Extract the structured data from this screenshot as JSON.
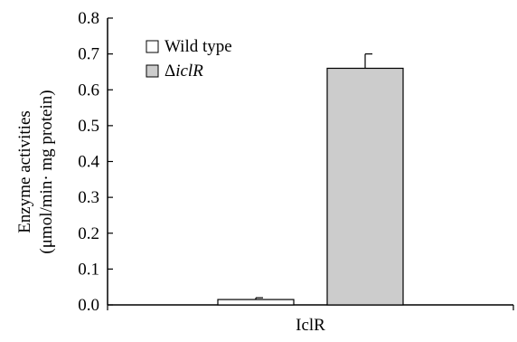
{
  "chart_data": {
    "type": "bar",
    "categories": [
      "IclR"
    ],
    "series": [
      {
        "name": "Wild type",
        "values": [
          0.015
        ],
        "errors": [
          0.005
        ],
        "color": "#ffffff"
      },
      {
        "name_prefix": "Δ",
        "name_italic": "iclR",
        "values": [
          0.66
        ],
        "errors": [
          0.04
        ],
        "color": "#cccccc"
      }
    ],
    "ylim": [
      0,
      0.8
    ],
    "yticks": [
      "0.0",
      "0.1",
      "0.2",
      "0.3",
      "0.4",
      "0.5",
      "0.6",
      "0.7",
      "0.8"
    ],
    "ylabel_line1": "Enzyme activities",
    "ylabel_line2": "(μmol/min· mg protein)",
    "xlabel": "",
    "legend_position": "top-left",
    "grid": false
  }
}
